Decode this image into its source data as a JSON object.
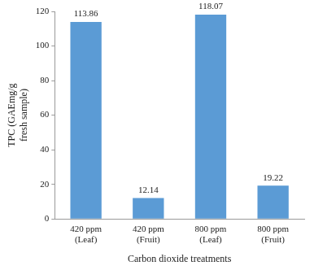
{
  "chart_data": {
    "type": "bar",
    "categories": [
      "420 ppm (Leaf)",
      "420 ppm (Fruit)",
      "800 ppm (Leaf)",
      "800 ppm (Fruit)"
    ],
    "values": [
      113.86,
      12.14,
      118.07,
      19.22
    ],
    "color": "#5b9bd5",
    "x_label": "Carbon dioxide treatments",
    "y_label": [
      "TPC (GAEmg/g",
      "fresh sample)"
    ],
    "ylim": [
      0,
      120
    ],
    "yticks": [
      0,
      20,
      40,
      60,
      80,
      100,
      120
    ],
    "grid": false,
    "data_labels": true,
    "legend": "none"
  }
}
